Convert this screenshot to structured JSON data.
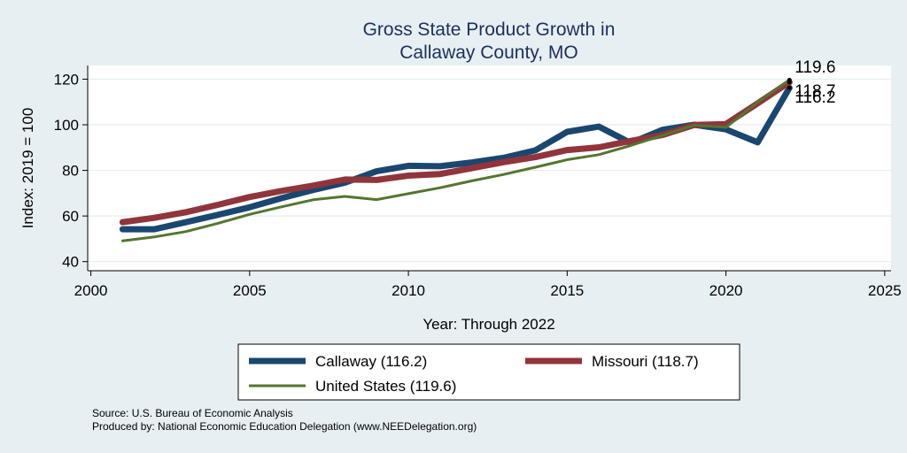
{
  "chart_data": {
    "type": "line",
    "title": [
      "Gross State Product Growth in",
      "Callaway County, MO"
    ],
    "xlabel": "Year: Through 2022",
    "ylabel": "Index: 2019 = 100",
    "xlim": [
      1999.9,
      2025.2
    ],
    "ylim": [
      36,
      126
    ],
    "xticks": [
      2000,
      2005,
      2010,
      2015,
      2020,
      2025
    ],
    "yticks": [
      40,
      60,
      80,
      100,
      120
    ],
    "grid": true,
    "legend_position": "bottom",
    "x": [
      2001,
      2002,
      2003,
      2004,
      2005,
      2006,
      2007,
      2008,
      2009,
      2010,
      2011,
      2012,
      2013,
      2014,
      2015,
      2016,
      2017,
      2018,
      2019,
      2020,
      2021,
      2022
    ],
    "series": [
      {
        "name": "Callaway",
        "legend_label": "Callaway  (116.2)",
        "color": "#1a476f",
        "width": 7,
        "values": [
          54.2,
          54.2,
          57.3,
          60.5,
          63.8,
          67.8,
          71.4,
          74.6,
          79.6,
          82.0,
          81.8,
          83.5,
          85.5,
          88.8,
          96.9,
          99.2,
          92.0,
          97.8,
          100.0,
          98.0,
          92.3,
          116.2
        ],
        "end_value": 116.2,
        "end_label": "116.2"
      },
      {
        "name": "Missouri",
        "legend_label": "Missouri (118.7)",
        "color": "#90353b",
        "width": 7,
        "values": [
          57.3,
          59.2,
          61.7,
          64.9,
          68.3,
          71.0,
          73.3,
          76.0,
          75.8,
          77.7,
          78.4,
          81.0,
          83.6,
          85.8,
          88.9,
          90.1,
          92.9,
          95.5,
          99.9,
          100.3,
          109.4,
          118.7
        ],
        "end_value": 118.7,
        "end_label": "118.7"
      },
      {
        "name": "United States",
        "legend_label": "United States (119.6)",
        "color": "#55752f",
        "width": 3,
        "values": [
          49.1,
          50.8,
          53.2,
          56.8,
          60.7,
          64.0,
          67.1,
          68.6,
          67.2,
          69.8,
          72.4,
          75.4,
          78.2,
          81.4,
          84.7,
          86.9,
          90.9,
          95.3,
          99.8,
          98.9,
          109.9,
          119.6
        ],
        "end_value": 119.6,
        "end_label": "119.6"
      }
    ]
  },
  "footer": {
    "source": "Source: U.S. Bureau of Economic Analysis",
    "produced": "Produced by: National Economic Education Delegation (www.NEEDelegation.org)"
  }
}
